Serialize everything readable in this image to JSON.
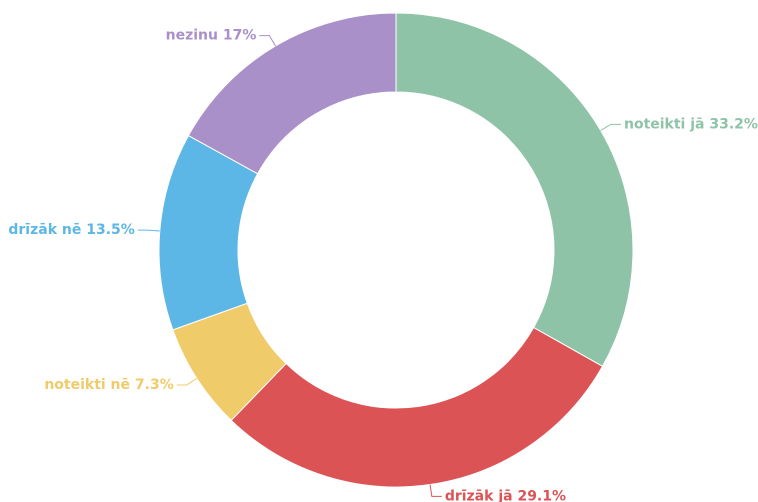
{
  "chart_data": {
    "type": "donut",
    "categories": [
      "noteikti jā",
      "drīzāk jā",
      "noteikti nē",
      "drīzāk nē",
      "nezinu"
    ],
    "values": [
      33.2,
      29.1,
      7.3,
      13.5,
      17
    ],
    "value_labels": [
      "33.2%",
      "29.1%",
      "7.3%",
      "13.5%",
      "17%"
    ],
    "colors": [
      "#8fc3a8",
      "#dc5356",
      "#f0cb69",
      "#5db7e6",
      "#aa90c8"
    ]
  }
}
